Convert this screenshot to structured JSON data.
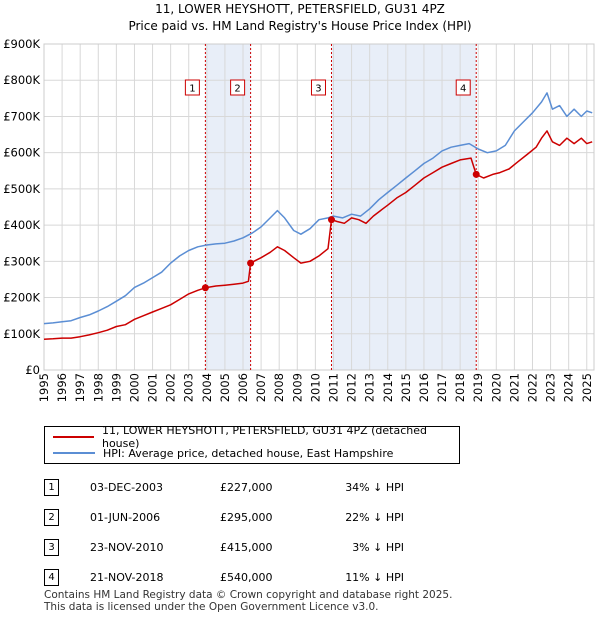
{
  "chart_data": {
    "type": "line",
    "title": "11, LOWER HEYSHOTT, PETERSFIELD, GU31 4PZ",
    "subtitle": "Price paid vs. HM Land Registry's House Price Index (HPI)",
    "xlabel": "",
    "ylabel": "",
    "xlim": [
      1995,
      2025.4
    ],
    "ylim": [
      0,
      900000
    ],
    "yticks": [
      {
        "value": 0,
        "label": "£0"
      },
      {
        "value": 100000,
        "label": "£100K"
      },
      {
        "value": 200000,
        "label": "£200K"
      },
      {
        "value": 300000,
        "label": "£300K"
      },
      {
        "value": 400000,
        "label": "£400K"
      },
      {
        "value": 500000,
        "label": "£500K"
      },
      {
        "value": 600000,
        "label": "£600K"
      },
      {
        "value": 700000,
        "label": "£700K"
      },
      {
        "value": 800000,
        "label": "£800K"
      },
      {
        "value": 900000,
        "label": "£900K"
      }
    ],
    "xticks": [
      "1995",
      "1996",
      "1997",
      "1998",
      "1999",
      "2000",
      "2001",
      "2002",
      "2003",
      "2004",
      "2005",
      "2006",
      "2007",
      "2008",
      "2009",
      "2010",
      "2011",
      "2012",
      "2013",
      "2014",
      "2015",
      "2016",
      "2017",
      "2018",
      "2019",
      "2020",
      "2021",
      "2022",
      "2023",
      "2024",
      "2025"
    ],
    "series": [
      {
        "name": "11, LOWER HEYSHOTT, PETERSFIELD, GU31 4PZ (detached house)",
        "color": "#cc0000",
        "x": [
          1995.0,
          1995.5,
          1996.0,
          1996.5,
          1997.0,
          1997.5,
          1998.0,
          1998.5,
          1999.0,
          1999.5,
          2000.0,
          2000.5,
          2001.0,
          2001.5,
          2002.0,
          2002.5,
          2003.0,
          2003.5,
          2003.92,
          2004.5,
          2005.0,
          2005.5,
          2006.0,
          2006.3,
          2006.42,
          2006.6,
          2007.0,
          2007.5,
          2007.9,
          2008.3,
          2008.8,
          2009.2,
          2009.7,
          2010.2,
          2010.7,
          2010.89,
          2011.2,
          2011.6,
          2012.0,
          2012.4,
          2012.8,
          2013.2,
          2013.6,
          2014.0,
          2014.5,
          2015.0,
          2015.5,
          2016.0,
          2016.5,
          2017.0,
          2017.5,
          2018.0,
          2018.6,
          2018.89,
          2019.3,
          2019.8,
          2020.2,
          2020.7,
          2021.2,
          2021.7,
          2022.2,
          2022.5,
          2022.8,
          2023.1,
          2023.5,
          2023.9,
          2024.3,
          2024.7,
          2025.0,
          2025.3
        ],
        "values": [
          85000,
          86000,
          88000,
          88000,
          92000,
          97000,
          103000,
          110000,
          120000,
          125000,
          140000,
          150000,
          160000,
          170000,
          180000,
          195000,
          210000,
          220000,
          227000,
          232000,
          234000,
          237000,
          240000,
          245000,
          295000,
          300000,
          310000,
          325000,
          340000,
          330000,
          310000,
          295000,
          300000,
          315000,
          335000,
          415000,
          410000,
          405000,
          420000,
          415000,
          405000,
          425000,
          440000,
          455000,
          475000,
          490000,
          510000,
          530000,
          545000,
          560000,
          570000,
          580000,
          585000,
          540000,
          530000,
          540000,
          545000,
          555000,
          575000,
          595000,
          615000,
          640000,
          660000,
          630000,
          620000,
          640000,
          625000,
          640000,
          625000,
          630000
        ]
      },
      {
        "name": "HPI: Average price, detached house, East Hampshire",
        "color": "#5b8ed4",
        "x": [
          1995.0,
          1995.5,
          1996.0,
          1996.5,
          1997.0,
          1997.5,
          1998.0,
          1998.5,
          1999.0,
          1999.5,
          2000.0,
          2000.5,
          2001.0,
          2001.5,
          2002.0,
          2002.5,
          2003.0,
          2003.5,
          2004.0,
          2004.5,
          2005.0,
          2005.5,
          2006.0,
          2006.5,
          2007.0,
          2007.5,
          2007.9,
          2008.3,
          2008.8,
          2009.2,
          2009.7,
          2010.2,
          2010.7,
          2011.0,
          2011.5,
          2012.0,
          2012.5,
          2013.0,
          2013.5,
          2014.0,
          2014.5,
          2015.0,
          2015.5,
          2016.0,
          2016.5,
          2017.0,
          2017.5,
          2018.0,
          2018.5,
          2019.0,
          2019.5,
          2020.0,
          2020.5,
          2021.0,
          2021.5,
          2022.0,
          2022.5,
          2022.8,
          2023.1,
          2023.5,
          2023.9,
          2024.3,
          2024.7,
          2025.0,
          2025.3
        ],
        "values": [
          128000,
          130000,
          133000,
          136000,
          145000,
          152000,
          163000,
          175000,
          190000,
          205000,
          228000,
          240000,
          255000,
          270000,
          295000,
          315000,
          330000,
          340000,
          345000,
          348000,
          350000,
          356000,
          365000,
          378000,
          395000,
          420000,
          440000,
          420000,
          385000,
          375000,
          390000,
          415000,
          420000,
          425000,
          420000,
          430000,
          425000,
          445000,
          470000,
          490000,
          510000,
          530000,
          550000,
          570000,
          585000,
          605000,
          615000,
          620000,
          625000,
          610000,
          600000,
          605000,
          620000,
          660000,
          685000,
          710000,
          740000,
          765000,
          720000,
          730000,
          700000,
          720000,
          700000,
          715000,
          710000
        ]
      }
    ],
    "sales": [
      {
        "label": "1",
        "date": "03-DEC-2003",
        "price": "£227,000",
        "hpi": "34% ↓ HPI",
        "x": 2003.92,
        "value": 227000
      },
      {
        "label": "2",
        "date": "01-JUN-2006",
        "price": "£295,000",
        "hpi": "22% ↓ HPI",
        "x": 2006.42,
        "value": 295000
      },
      {
        "label": "3",
        "date": "23-NOV-2010",
        "price": "£415,000",
        "hpi": "3% ↓ HPI",
        "x": 2010.89,
        "value": 415000
      },
      {
        "label": "4",
        "date": "21-NOV-2018",
        "price": "£540,000",
        "hpi": "11% ↓ HPI",
        "x": 2018.89,
        "value": 540000
      }
    ],
    "shaded_ranges": [
      [
        2003.92,
        2006.42
      ],
      [
        2010.89,
        2018.89
      ]
    ],
    "grid": true
  },
  "legend": {
    "property_label": "11, LOWER HEYSHOTT, PETERSFIELD, GU31 4PZ (detached house)",
    "hpi_label": "HPI: Average price, detached house, East Hampshire"
  },
  "footer": {
    "line1": "Contains HM Land Registry data © Crown copyright and database right 2025.",
    "line2": "This data is licensed under the Open Government Licence v3.0."
  }
}
